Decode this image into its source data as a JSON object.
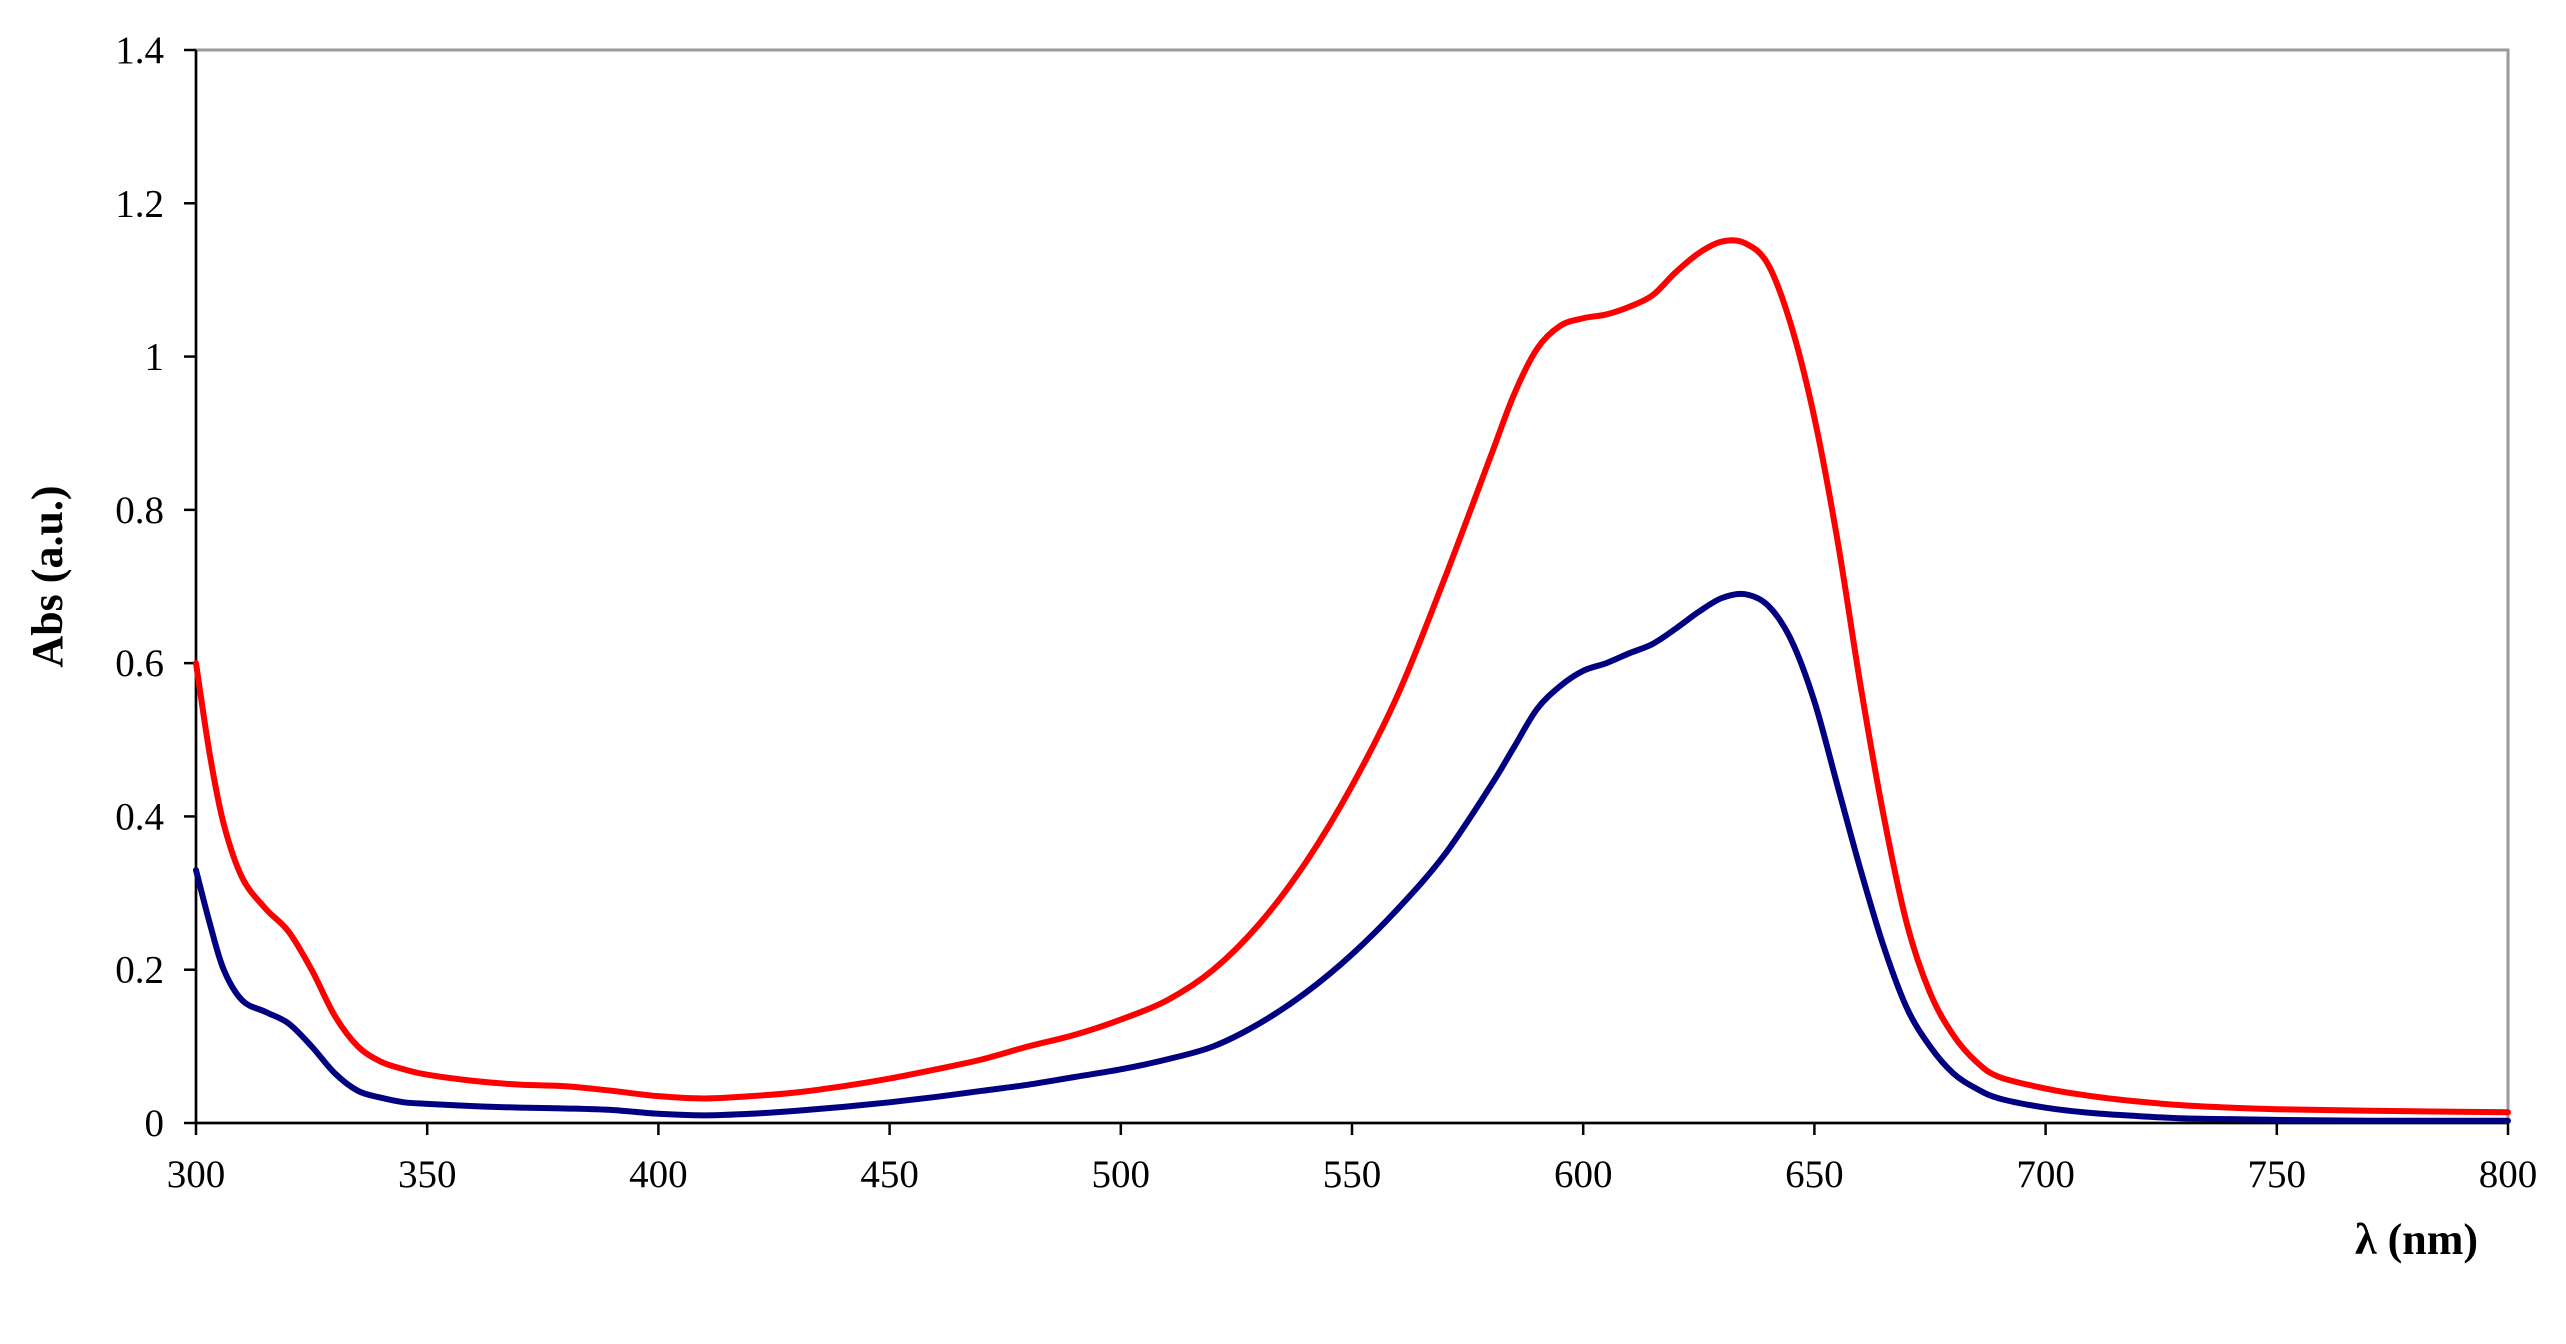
{
  "chart_data": {
    "type": "line",
    "title": "",
    "xlabel": "λ (nm)",
    "ylabel": "Abs (a.u.)",
    "xlim": [
      300,
      800
    ],
    "ylim": [
      0,
      1.4
    ],
    "x_ticks": [
      300,
      350,
      400,
      450,
      500,
      550,
      600,
      650,
      700,
      750,
      800
    ],
    "x_tick_labels": [
      "300",
      "350",
      "400",
      "450",
      "500",
      "550",
      "600",
      "650",
      "700",
      "750",
      "800"
    ],
    "y_ticks": [
      0,
      0.2,
      0.4,
      0.6,
      0.8,
      1.0,
      1.2,
      1.4
    ],
    "y_tick_labels": [
      "0",
      "0.2",
      "0.4",
      "0.6",
      "0.8",
      "1",
      "1.2",
      "1.4"
    ],
    "grid": false,
    "legend": "none",
    "colors": [
      "#ff0000",
      "#000080"
    ],
    "series": [
      {
        "color": "#ff0000",
        "points": [
          [
            300,
            0.6
          ],
          [
            303,
            0.48
          ],
          [
            306,
            0.39
          ],
          [
            310,
            0.32
          ],
          [
            315,
            0.28
          ],
          [
            320,
            0.25
          ],
          [
            325,
            0.2
          ],
          [
            330,
            0.14
          ],
          [
            335,
            0.1
          ],
          [
            340,
            0.08
          ],
          [
            345,
            0.07
          ],
          [
            350,
            0.063
          ],
          [
            360,
            0.055
          ],
          [
            370,
            0.05
          ],
          [
            380,
            0.048
          ],
          [
            390,
            0.042
          ],
          [
            400,
            0.035
          ],
          [
            410,
            0.032
          ],
          [
            420,
            0.035
          ],
          [
            430,
            0.04
          ],
          [
            440,
            0.048
          ],
          [
            450,
            0.058
          ],
          [
            460,
            0.07
          ],
          [
            470,
            0.083
          ],
          [
            480,
            0.1
          ],
          [
            490,
            0.115
          ],
          [
            500,
            0.135
          ],
          [
            510,
            0.16
          ],
          [
            520,
            0.2
          ],
          [
            530,
            0.26
          ],
          [
            540,
            0.34
          ],
          [
            550,
            0.44
          ],
          [
            560,
            0.56
          ],
          [
            570,
            0.71
          ],
          [
            580,
            0.87
          ],
          [
            585,
            0.95
          ],
          [
            590,
            1.01
          ],
          [
            595,
            1.04
          ],
          [
            600,
            1.05
          ],
          [
            605,
            1.055
          ],
          [
            610,
            1.065
          ],
          [
            615,
            1.08
          ],
          [
            620,
            1.11
          ],
          [
            625,
            1.135
          ],
          [
            630,
            1.15
          ],
          [
            635,
            1.148
          ],
          [
            640,
            1.12
          ],
          [
            645,
            1.04
          ],
          [
            650,
            0.92
          ],
          [
            655,
            0.76
          ],
          [
            660,
            0.57
          ],
          [
            665,
            0.4
          ],
          [
            670,
            0.26
          ],
          [
            675,
            0.17
          ],
          [
            680,
            0.115
          ],
          [
            685,
            0.08
          ],
          [
            690,
            0.06
          ],
          [
            700,
            0.045
          ],
          [
            710,
            0.035
          ],
          [
            720,
            0.028
          ],
          [
            730,
            0.023
          ],
          [
            740,
            0.02
          ],
          [
            750,
            0.018
          ],
          [
            770,
            0.016
          ],
          [
            800,
            0.014
          ]
        ]
      },
      {
        "color": "#000080",
        "points": [
          [
            300,
            0.33
          ],
          [
            303,
            0.26
          ],
          [
            306,
            0.2
          ],
          [
            310,
            0.16
          ],
          [
            315,
            0.145
          ],
          [
            320,
            0.13
          ],
          [
            325,
            0.1
          ],
          [
            330,
            0.065
          ],
          [
            335,
            0.042
          ],
          [
            340,
            0.033
          ],
          [
            345,
            0.027
          ],
          [
            350,
            0.025
          ],
          [
            360,
            0.022
          ],
          [
            370,
            0.02
          ],
          [
            380,
            0.019
          ],
          [
            390,
            0.017
          ],
          [
            400,
            0.012
          ],
          [
            410,
            0.01
          ],
          [
            420,
            0.012
          ],
          [
            430,
            0.016
          ],
          [
            440,
            0.021
          ],
          [
            450,
            0.027
          ],
          [
            460,
            0.034
          ],
          [
            470,
            0.042
          ],
          [
            480,
            0.05
          ],
          [
            490,
            0.06
          ],
          [
            500,
            0.07
          ],
          [
            510,
            0.083
          ],
          [
            520,
            0.1
          ],
          [
            530,
            0.13
          ],
          [
            540,
            0.17
          ],
          [
            550,
            0.22
          ],
          [
            560,
            0.28
          ],
          [
            570,
            0.35
          ],
          [
            580,
            0.44
          ],
          [
            585,
            0.49
          ],
          [
            590,
            0.54
          ],
          [
            595,
            0.57
          ],
          [
            600,
            0.59
          ],
          [
            605,
            0.6
          ],
          [
            610,
            0.613
          ],
          [
            615,
            0.625
          ],
          [
            620,
            0.645
          ],
          [
            625,
            0.667
          ],
          [
            630,
            0.685
          ],
          [
            635,
            0.69
          ],
          [
            640,
            0.675
          ],
          [
            645,
            0.63
          ],
          [
            650,
            0.55
          ],
          [
            655,
            0.44
          ],
          [
            660,
            0.33
          ],
          [
            665,
            0.23
          ],
          [
            670,
            0.15
          ],
          [
            675,
            0.1
          ],
          [
            680,
            0.065
          ],
          [
            685,
            0.045
          ],
          [
            690,
            0.032
          ],
          [
            700,
            0.02
          ],
          [
            710,
            0.013
          ],
          [
            720,
            0.009
          ],
          [
            730,
            0.006
          ],
          [
            740,
            0.005
          ],
          [
            750,
            0.004
          ],
          [
            770,
            0.003
          ],
          [
            800,
            0.003
          ]
        ]
      }
    ]
  }
}
